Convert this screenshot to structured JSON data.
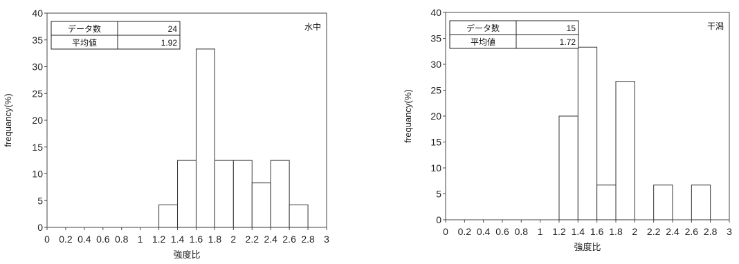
{
  "chart_data": [
    {
      "type": "bar",
      "title": "",
      "panel_label": "水中",
      "xlabel": "強度比",
      "ylabel": "frequancy(%)",
      "xlim": [
        0,
        3
      ],
      "ylim": [
        0,
        40
      ],
      "x_ticks": [
        "0",
        "0.2",
        "0.4",
        "0.6",
        "0.8",
        "1",
        "1.2",
        "1.4",
        "1.6",
        "1.8",
        "2",
        "2.2",
        "2.4",
        "2.6",
        "2.8",
        "3"
      ],
      "y_ticks": [
        "0",
        "5",
        "10",
        "15",
        "20",
        "25",
        "30",
        "35",
        "40"
      ],
      "bins": [
        {
          "start": 1.2,
          "end": 1.4,
          "value": 4.2
        },
        {
          "start": 1.4,
          "end": 1.6,
          "value": 12.5
        },
        {
          "start": 1.6,
          "end": 1.8,
          "value": 33.3
        },
        {
          "start": 1.8,
          "end": 2.0,
          "value": 12.5
        },
        {
          "start": 2.0,
          "end": 2.2,
          "value": 12.5
        },
        {
          "start": 2.2,
          "end": 2.4,
          "value": 8.3
        },
        {
          "start": 2.4,
          "end": 2.6,
          "value": 12.5
        },
        {
          "start": 2.6,
          "end": 2.8,
          "value": 4.2
        }
      ],
      "stats": {
        "count_label": "データ数",
        "count_value": "24",
        "mean_label": "平均値",
        "mean_value": "1.92"
      },
      "grid": false
    },
    {
      "type": "bar",
      "title": "",
      "panel_label": "干潟",
      "xlabel": "強度比",
      "ylabel": "frequancy(%)",
      "xlim": [
        0,
        3
      ],
      "ylim": [
        0,
        40
      ],
      "x_ticks": [
        "0",
        "0.2",
        "0.4",
        "0.6",
        "0.8",
        "1",
        "1.2",
        "1.4",
        "1.6",
        "1.8",
        "2",
        "2.2",
        "2.4",
        "2.6",
        "2.8",
        "3"
      ],
      "y_ticks": [
        "0",
        "5",
        "10",
        "15",
        "20",
        "25",
        "30",
        "35",
        "40"
      ],
      "bins": [
        {
          "start": 1.2,
          "end": 1.4,
          "value": 20.0
        },
        {
          "start": 1.4,
          "end": 1.6,
          "value": 33.3
        },
        {
          "start": 1.6,
          "end": 1.8,
          "value": 6.7
        },
        {
          "start": 1.8,
          "end": 2.0,
          "value": 26.7
        },
        {
          "start": 2.2,
          "end": 2.4,
          "value": 6.7
        },
        {
          "start": 2.6,
          "end": 2.8,
          "value": 6.7
        }
      ],
      "stats": {
        "count_label": "データ数",
        "count_value": "15",
        "mean_label": "平均値",
        "mean_value": "1.72"
      },
      "grid": false
    }
  ]
}
